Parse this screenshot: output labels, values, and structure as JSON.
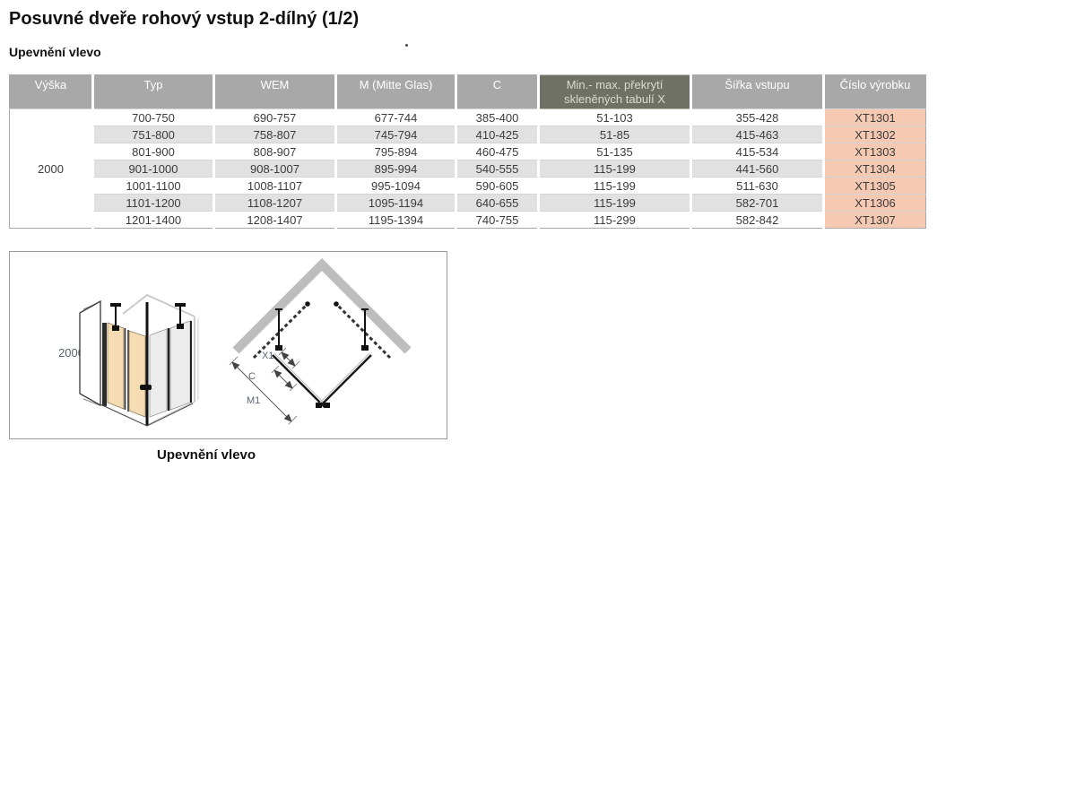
{
  "page": {
    "title": "Posuvné dveře rohový vstup 2-dílný (1/2)",
    "section_label": "Upevnění vlevo"
  },
  "table": {
    "columns": [
      "Výška",
      "Typ",
      "WEM",
      "M (Mitte Glas)",
      "C",
      "Min.- max. překrytí skleněných tabulí X",
      "Šířka vstupu",
      "Číslo výrobku"
    ],
    "highlighted_column_index": 5,
    "height_value": "2000",
    "row_fields": [
      "typ",
      "wem",
      "m_mitte_glas",
      "c",
      "prekryti_x",
      "sirka_vstupu",
      "cislo_vyrobku"
    ],
    "rows": [
      {
        "typ": "700-750",
        "wem": "690-757",
        "m_mitte_glas": "677-744",
        "c": "385-400",
        "prekryti_x": "51-103",
        "sirka_vstupu": "355-428",
        "cislo_vyrobku": "XT1301"
      },
      {
        "typ": "751-800",
        "wem": "758-807",
        "m_mitte_glas": "745-794",
        "c": "410-425",
        "prekryti_x": "51-85",
        "sirka_vstupu": "415-463",
        "cislo_vyrobku": "XT1302"
      },
      {
        "typ": "801-900",
        "wem": "808-907",
        "m_mitte_glas": "795-894",
        "c": "460-475",
        "prekryti_x": "51-135",
        "sirka_vstupu": "415-534",
        "cislo_vyrobku": "XT1303"
      },
      {
        "typ": "901-1000",
        "wem": "908-1007",
        "m_mitte_glas": "895-994",
        "c": "540-555",
        "prekryti_x": "115-199",
        "sirka_vstupu": "441-560",
        "cislo_vyrobku": "XT1304"
      },
      {
        "typ": "1001-1100",
        "wem": "1008-1107",
        "m_mitte_glas": "995-1094",
        "c": "590-605",
        "prekryti_x": "115-199",
        "sirka_vstupu": "511-630",
        "cislo_vyrobku": "XT1305"
      },
      {
        "typ": "1101-1200",
        "wem": "1108-1207",
        "m_mitte_glas": "1095-1194",
        "c": "640-655",
        "prekryti_x": "115-199",
        "sirka_vstupu": "582-701",
        "cislo_vyrobku": "XT1306"
      },
      {
        "typ": "1201-1400",
        "wem": "1208-1407",
        "m_mitte_glas": "1195-1394",
        "c": "740-755",
        "prekryti_x": "115-299",
        "sirka_vstupu": "582-842",
        "cislo_vyrobku": "XT1307"
      }
    ]
  },
  "diagram": {
    "dimension_label": "2000",
    "plan_labels": {
      "x1": "X1",
      "c": "C",
      "m1": "M1"
    },
    "caption": "Upevnění vlevo"
  },
  "colors": {
    "header_bg": "#a8a8a8",
    "header_highlight_bg": "#6f7165",
    "row_alt": "#e1e1e1",
    "product_cell_bg": "#f6c9b2",
    "panel_highlight": "#f5dcb3",
    "glass_gray": "#ececec",
    "wall_gray": "#bdbdbd",
    "dim_text": "#5a6472"
  }
}
